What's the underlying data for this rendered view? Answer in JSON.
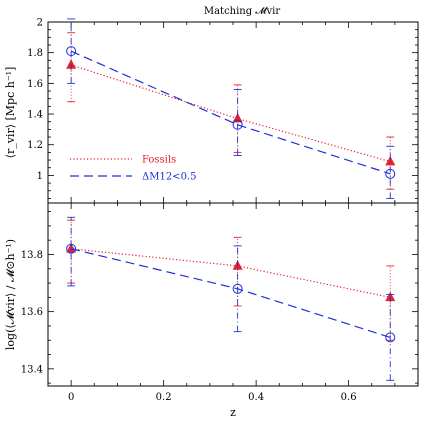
{
  "chart_data": [
    {
      "type": "line",
      "title": "Matching 𝓜vir",
      "ylabel": "⟨r_vir⟩ [Mpc h⁻¹]",
      "xlim": [
        -0.05,
        0.75
      ],
      "ylim": [
        0.82,
        2.0
      ],
      "yticks": [
        "1",
        "1.2",
        "1.4",
        "1.6",
        "1.8",
        "2"
      ],
      "grid": false,
      "legend_placement": "bottom-left",
      "series": [
        {
          "name": "Fossils",
          "color": "#e8202a",
          "linestyle": "dotted",
          "marker": "filled-triangle",
          "x": [
            0.0,
            0.36,
            0.69
          ],
          "y": [
            1.72,
            1.37,
            1.09
          ],
          "err": [
            [
              1.48,
              1.93
            ],
            [
              1.15,
              1.59
            ],
            [
              0.91,
              1.25
            ]
          ]
        },
        {
          "name": "ΔM12<0.5",
          "color": "#2030d8",
          "linestyle": "dashed",
          "marker": "open-circle",
          "x": [
            0.0,
            0.36,
            0.69
          ],
          "y": [
            1.81,
            1.33,
            1.01
          ],
          "err": [
            [
              1.6,
              2.02
            ],
            [
              1.13,
              1.56
            ],
            [
              0.85,
              1.19
            ]
          ]
        }
      ]
    },
    {
      "type": "line",
      "xlabel": "z",
      "ylabel": "log(⟨𝓜vir⟩ / 𝓜⊙h⁻¹)",
      "xlim": [
        -0.05,
        0.75
      ],
      "ylim": [
        13.34,
        13.98
      ],
      "xticks": [
        "0",
        "0.2",
        "0.4",
        "0.6"
      ],
      "yticks": [
        "13.4",
        "13.6",
        "13.8"
      ],
      "grid": false,
      "series": [
        {
          "name": "Fossils",
          "color": "#e8202a",
          "linestyle": "dotted",
          "marker": "filled-triangle",
          "x": [
            0.0,
            0.36,
            0.69
          ],
          "y": [
            13.82,
            13.76,
            13.65
          ],
          "err": [
            [
              13.7,
              13.92
            ],
            [
              13.62,
              13.86
            ],
            [
              13.5,
              13.76
            ]
          ]
        },
        {
          "name": "ΔM12<0.5",
          "color": "#2030d8",
          "linestyle": "dashed",
          "marker": "open-circle",
          "x": [
            0.0,
            0.36,
            0.69
          ],
          "y": [
            13.82,
            13.68,
            13.51
          ],
          "err": [
            [
              13.69,
              13.93
            ],
            [
              13.53,
              13.83
            ],
            [
              13.36,
              13.66
            ]
          ]
        }
      ]
    }
  ]
}
